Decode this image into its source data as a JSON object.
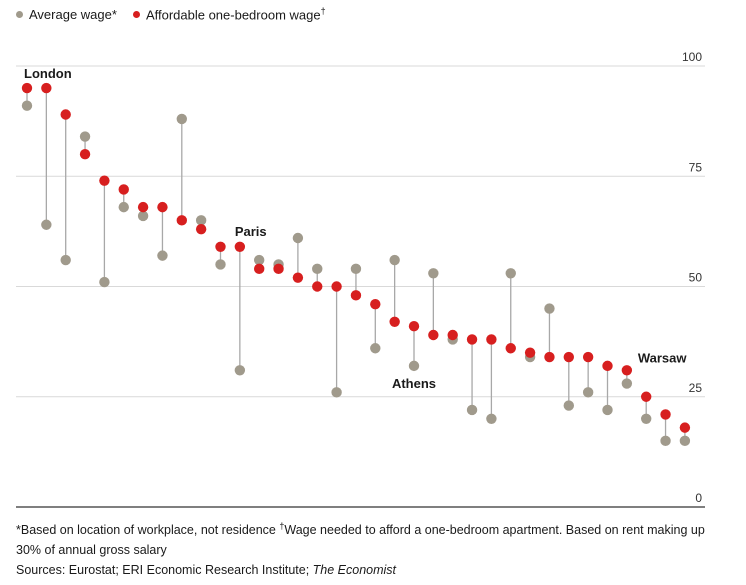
{
  "legend": {
    "avg_label": "Average wage*",
    "aff_label": "Affordable one-bedroom wage",
    "aff_mark": "†"
  },
  "footnotes": {
    "note1": "*Based on location of workplace, not residence ",
    "dagger": "†",
    "note2": "Wage needed to afford a one-bedroom apartment. Based on rent making up 30% of annual gross salary",
    "sources_prefix": "Sources: Eurostat; ERI Economic Research Institute; ",
    "sources_italic": "The Economist"
  },
  "colors": {
    "average": "#a09a8c",
    "affordable": "#d71f1f",
    "connector": "#a8a8a8",
    "grid": "#d9d9d9",
    "axis": "#333333"
  },
  "chart_data": {
    "type": "scatter",
    "title": "",
    "xlabel": "",
    "ylabel": "",
    "ylim": [
      0,
      100
    ],
    "yticks": [
      0,
      25,
      50,
      75,
      100
    ],
    "series_names": [
      "Average wage*",
      "Affordable one-bedroom wage†"
    ],
    "points": [
      {
        "label": "London",
        "average": 91,
        "affordable": 95
      },
      {
        "label": "",
        "average": 64,
        "affordable": 95
      },
      {
        "label": "",
        "average": 56,
        "affordable": 89
      },
      {
        "label": "",
        "average": 84,
        "affordable": 80
      },
      {
        "label": "",
        "average": 51,
        "affordable": 74
      },
      {
        "label": "",
        "average": 68,
        "affordable": 72
      },
      {
        "label": "",
        "average": 66,
        "affordable": 68
      },
      {
        "label": "",
        "average": 57,
        "affordable": 68
      },
      {
        "label": "",
        "average": 88,
        "affordable": 65
      },
      {
        "label": "",
        "average": 65,
        "affordable": 63
      },
      {
        "label": "",
        "average": 55,
        "affordable": 59
      },
      {
        "label": "Paris",
        "average": 31,
        "affordable": 59
      },
      {
        "label": "",
        "average": 56,
        "affordable": 54
      },
      {
        "label": "",
        "average": 55,
        "affordable": 54
      },
      {
        "label": "",
        "average": 61,
        "affordable": 52
      },
      {
        "label": "",
        "average": 54,
        "affordable": 50
      },
      {
        "label": "",
        "average": 26,
        "affordable": 50
      },
      {
        "label": "",
        "average": 54,
        "affordable": 48
      },
      {
        "label": "",
        "average": 36,
        "affordable": 46
      },
      {
        "label": "",
        "average": 56,
        "affordable": 42
      },
      {
        "label": "Athens",
        "average": 32,
        "affordable": 41
      },
      {
        "label": "",
        "average": 53,
        "affordable": 39
      },
      {
        "label": "",
        "average": 38,
        "affordable": 39
      },
      {
        "label": "",
        "average": 22,
        "affordable": 38
      },
      {
        "label": "",
        "average": 20,
        "affordable": 38
      },
      {
        "label": "",
        "average": 53,
        "affordable": 36
      },
      {
        "label": "",
        "average": 34,
        "affordable": 35
      },
      {
        "label": "",
        "average": 45,
        "affordable": 34
      },
      {
        "label": "",
        "average": 23,
        "affordable": 34
      },
      {
        "label": "",
        "average": 26,
        "affordable": 34
      },
      {
        "label": "",
        "average": 22,
        "affordable": 32
      },
      {
        "label": "Warsaw",
        "average": 28,
        "affordable": 31
      },
      {
        "label": "",
        "average": 20,
        "affordable": 25
      },
      {
        "label": "",
        "average": 15,
        "affordable": 21
      },
      {
        "label": "",
        "average": 15,
        "affordable": 18
      }
    ]
  }
}
